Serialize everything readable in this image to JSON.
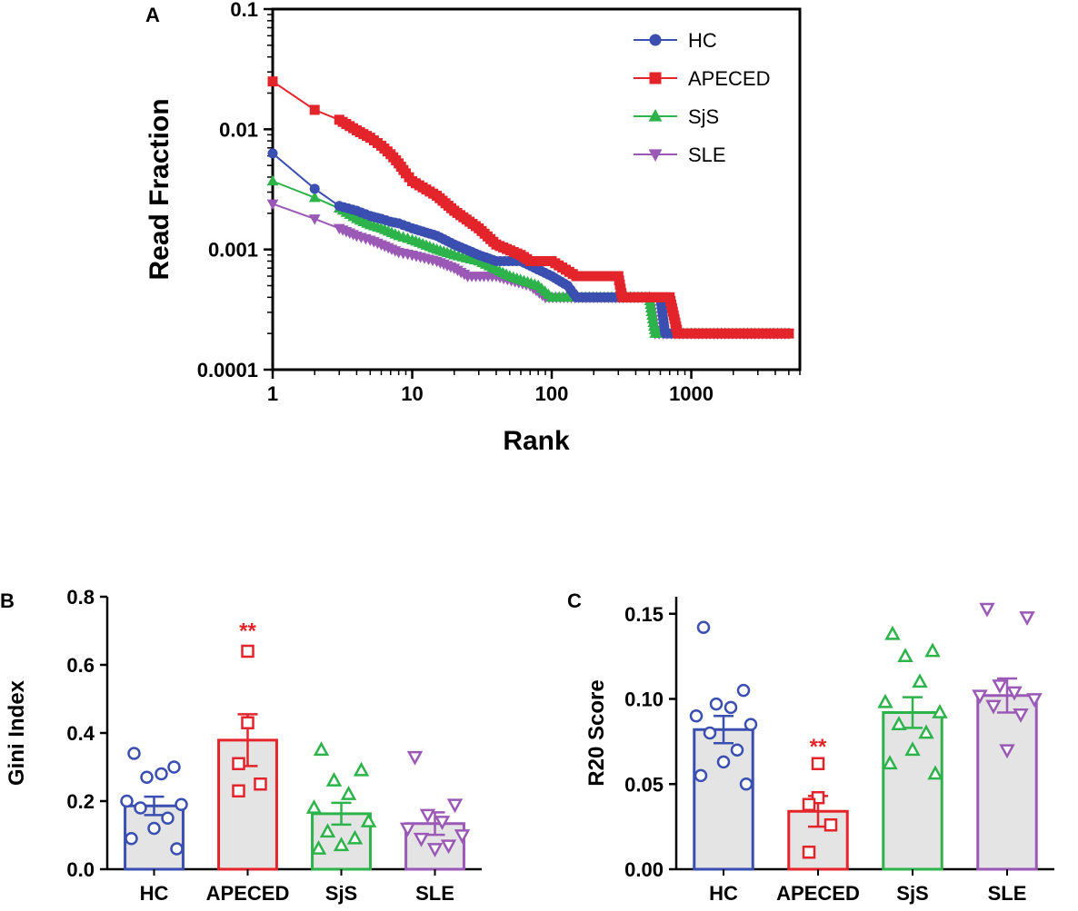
{
  "colors": {
    "HC": "#3a4fb0",
    "APECED": "#e3242b",
    "SjS": "#2db34a",
    "SLE": "#9b59b6",
    "bar_fill": "#e4e4e4",
    "axis": "#000000"
  },
  "chart_data": [
    {
      "panel": "A",
      "type": "line",
      "xlabel": "Rank",
      "ylabel": "Read Fraction",
      "xscale": "log",
      "yscale": "log",
      "xlim": [
        1,
        6000
      ],
      "ylim": [
        0.0001,
        0.1
      ],
      "xticks": [
        "1",
        "10",
        "100",
        "1000"
      ],
      "yticks": [
        "0.0001",
        "0.001",
        "0.01",
        "0.1"
      ],
      "legend_position": "top-right",
      "series": [
        {
          "name": "HC",
          "marker": "circle",
          "x": [
            1,
            2,
            3,
            4,
            5,
            6,
            7,
            8,
            10,
            15,
            20,
            30,
            40,
            60,
            100,
            130,
            150,
            300,
            600,
            650,
            1000,
            5000
          ],
          "y": [
            0.0063,
            0.0032,
            0.0023,
            0.0021,
            0.0019,
            0.0018,
            0.0017,
            0.00165,
            0.0015,
            0.0013,
            0.0011,
            0.0009,
            0.0008,
            0.0008,
            0.0006,
            0.0005,
            0.0004,
            0.0004,
            0.0004,
            0.0002,
            0.0002,
            0.0002
          ]
        },
        {
          "name": "APECED",
          "marker": "square",
          "x": [
            1,
            2,
            3,
            4,
            5,
            6,
            7,
            8,
            9,
            10,
            15,
            20,
            30,
            40,
            60,
            70,
            100,
            150,
            300,
            320,
            700,
            800,
            1000,
            5000
          ],
          "y": [
            0.025,
            0.0145,
            0.012,
            0.0098,
            0.0085,
            0.0073,
            0.0062,
            0.0052,
            0.0043,
            0.0037,
            0.0028,
            0.0021,
            0.0015,
            0.0011,
            0.0009,
            0.0008,
            0.0008,
            0.0006,
            0.0006,
            0.0004,
            0.0004,
            0.0002,
            0.0002,
            0.0002
          ]
        },
        {
          "name": "SjS",
          "marker": "triangle-up",
          "x": [
            1,
            2,
            3,
            4,
            5,
            6,
            8,
            10,
            15,
            20,
            30,
            50,
            80,
            100,
            500,
            550,
            1000,
            5000
          ],
          "y": [
            0.0037,
            0.0027,
            0.0022,
            0.0018,
            0.0016,
            0.0015,
            0.0013,
            0.0012,
            0.001,
            0.0009,
            0.0008,
            0.0006,
            0.0005,
            0.0004,
            0.0004,
            0.0002,
            0.0002,
            0.0002
          ]
        },
        {
          "name": "SLE",
          "marker": "triangle-down",
          "x": [
            1,
            2,
            3,
            4,
            5,
            6,
            8,
            10,
            15,
            20,
            25,
            40,
            70,
            90,
            500,
            550,
            1000,
            5000
          ],
          "y": [
            0.0024,
            0.0018,
            0.0015,
            0.0013,
            0.0012,
            0.0011,
            0.00095,
            0.0009,
            0.0008,
            0.0007,
            0.0006,
            0.0006,
            0.0005,
            0.0004,
            0.0004,
            0.0002,
            0.0002,
            0.0002
          ]
        }
      ]
    },
    {
      "panel": "B",
      "type": "bar",
      "ylabel": "Gini Index",
      "ylim": [
        0.0,
        0.8
      ],
      "yticks": [
        "0.0",
        "0.2",
        "0.4",
        "0.6",
        "0.8"
      ],
      "categories": [
        "HC",
        "APECED",
        "SjS",
        "SLE"
      ],
      "markers": [
        "circle",
        "square",
        "triangle-up",
        "triangle-down"
      ],
      "means": [
        0.186,
        0.379,
        0.163,
        0.134
      ],
      "sem": [
        0.027,
        0.076,
        0.032,
        0.033
      ],
      "annotation": {
        "category": "APECED",
        "text": "**",
        "y": 0.7
      },
      "points": [
        [
          0.34,
          0.3,
          0.27,
          0.28,
          0.2,
          0.19,
          0.18,
          0.15,
          0.12,
          0.09,
          0.06
        ],
        [
          0.64,
          0.43,
          0.31,
          0.25,
          0.23
        ],
        [
          0.35,
          0.29,
          0.26,
          0.22,
          0.18,
          0.14,
          0.11,
          0.09,
          0.07,
          0.06
        ],
        [
          0.33,
          0.19,
          0.16,
          0.14,
          0.12,
          0.1,
          0.09,
          0.07,
          0.06
        ]
      ]
    },
    {
      "panel": "C",
      "type": "bar",
      "ylabel": "R20 Score",
      "ylim": [
        0.0,
        0.16
      ],
      "yticks": [
        "0.00",
        "0.05",
        "0.10",
        "0.15"
      ],
      "categories": [
        "HC",
        "APECED",
        "SjS",
        "SLE"
      ],
      "markers": [
        "circle",
        "square",
        "triangle-up",
        "triangle-down"
      ],
      "means": [
        0.082,
        0.034,
        0.092,
        0.102
      ],
      "sem": [
        0.008,
        0.009,
        0.009,
        0.01
      ],
      "annotation": {
        "category": "APECED",
        "text": "**",
        "y": 0.072
      },
      "points": [
        [
          0.142,
          0.105,
          0.097,
          0.095,
          0.09,
          0.085,
          0.08,
          0.07,
          0.063,
          0.055,
          0.05
        ],
        [
          0.062,
          0.042,
          0.038,
          0.026,
          0.01
        ],
        [
          0.138,
          0.128,
          0.125,
          0.11,
          0.098,
          0.092,
          0.085,
          0.08,
          0.07,
          0.062,
          0.056
        ],
        [
          0.153,
          0.148,
          0.108,
          0.104,
          0.102,
          0.1,
          0.096,
          0.091,
          0.07
        ]
      ]
    }
  ]
}
